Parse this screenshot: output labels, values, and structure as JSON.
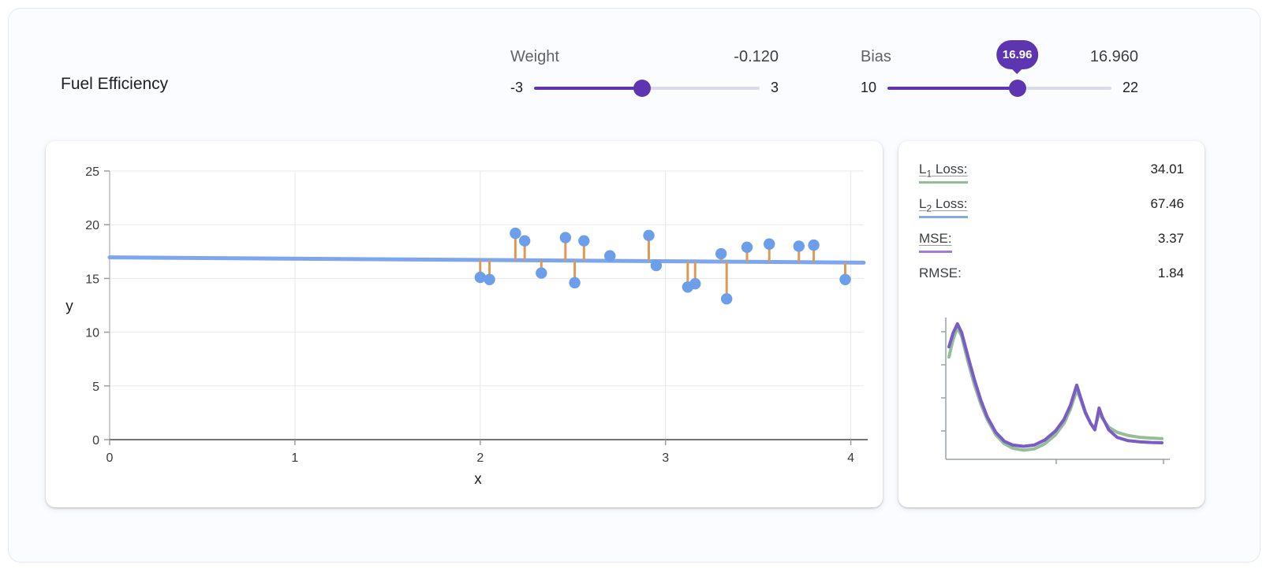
{
  "page": {
    "title": "Fuel Efficiency"
  },
  "colors": {
    "accent_purple": "#5e35b1",
    "track_inactive": "#ded9e8",
    "point_blue": "#6c9eea",
    "model_line_blue": "#7ea6ef",
    "residual_orange": "#de9a55",
    "l1_green": "#94bd98",
    "l2_blue": "#85abe8",
    "mse_purple": "#9c7fd4",
    "mini_purple": "#7a5cc6",
    "grid": "#e8e8e8",
    "axis_dark": "#616161",
    "axis_light": "#bdbdbd"
  },
  "controls": {
    "weight": {
      "label": "Weight",
      "value_display": "-0.120",
      "min": -3,
      "max": 3,
      "value": -0.12,
      "min_label": "-3",
      "max_label": "3"
    },
    "bias": {
      "label": "Bias",
      "value_display": "16.960",
      "min": 10,
      "max": 22,
      "value": 16.96,
      "min_label": "10",
      "max_label": "22",
      "tooltip": "16.96"
    }
  },
  "metrics": [
    {
      "name": "l1-loss",
      "label_main": "L",
      "label_sub": "1",
      "label_rest": " Loss:",
      "value": "34.01",
      "underline": "#94bd98"
    },
    {
      "name": "l2-loss",
      "label_main": "L",
      "label_sub": "2",
      "label_rest": " Loss:",
      "value": "67.46",
      "underline": "#85abe8"
    },
    {
      "name": "mse",
      "label_main": "MSE:",
      "label_sub": "",
      "label_rest": "",
      "value": "3.37",
      "underline": "#9c7fd4"
    },
    {
      "name": "rmse",
      "label_main": "RMSE:",
      "label_sub": "",
      "label_rest": "",
      "value": "1.84",
      "underline": ""
    }
  ],
  "chart_data": [
    {
      "type": "scatter",
      "title": "",
      "xlabel": "x",
      "ylabel": "y",
      "xlim": [
        0,
        4.07
      ],
      "ylim": [
        0,
        25
      ],
      "xticks": [
        0,
        1,
        2,
        3,
        4
      ],
      "yticks": [
        0,
        5,
        10,
        15,
        20,
        25
      ],
      "grid": true,
      "points": [
        [
          2.0,
          15.1
        ],
        [
          2.05,
          14.9
        ],
        [
          2.19,
          19.2
        ],
        [
          2.24,
          18.5
        ],
        [
          2.33,
          15.5
        ],
        [
          2.46,
          18.8
        ],
        [
          2.51,
          14.6
        ],
        [
          2.56,
          18.5
        ],
        [
          2.7,
          17.1
        ],
        [
          2.91,
          19.0
        ],
        [
          2.95,
          16.2
        ],
        [
          3.12,
          14.2
        ],
        [
          3.16,
          14.5
        ],
        [
          3.3,
          17.3
        ],
        [
          3.33,
          13.1
        ],
        [
          3.44,
          17.9
        ],
        [
          3.56,
          18.2
        ],
        [
          3.72,
          18.0
        ],
        [
          3.8,
          18.1
        ],
        [
          3.97,
          14.9
        ]
      ],
      "model_line": {
        "weight": -0.12,
        "bias": 16.96
      },
      "residuals": true,
      "colors": {
        "point": "#6c9eea",
        "line": "#7ea6ef",
        "residual": "#de9a55"
      }
    },
    {
      "type": "line",
      "title": "loss-history",
      "xlabel": "",
      "ylabel": "",
      "legend_position": "none",
      "series": [
        {
          "name": "L1 Loss",
          "color": "#94bd98",
          "values": [
            [
              0,
              0.74
            ],
            [
              0.02,
              0.88
            ],
            [
              0.04,
              0.97
            ],
            [
              0.06,
              0.9
            ],
            [
              0.09,
              0.7
            ],
            [
              0.12,
              0.52
            ],
            [
              0.15,
              0.37
            ],
            [
              0.18,
              0.25
            ],
            [
              0.22,
              0.13
            ],
            [
              0.26,
              0.06
            ],
            [
              0.3,
              0.025
            ],
            [
              0.35,
              0.01
            ],
            [
              0.4,
              0.02
            ],
            [
              0.45,
              0.06
            ],
            [
              0.5,
              0.13
            ],
            [
              0.54,
              0.22
            ],
            [
              0.57,
              0.33
            ],
            [
              0.6,
              0.48
            ],
            [
              0.615,
              0.42
            ],
            [
              0.64,
              0.3
            ],
            [
              0.665,
              0.22
            ],
            [
              0.685,
              0.18
            ],
            [
              0.705,
              0.3
            ],
            [
              0.72,
              0.26
            ],
            [
              0.75,
              0.19
            ],
            [
              0.79,
              0.15
            ],
            [
              0.84,
              0.125
            ],
            [
              0.9,
              0.11
            ],
            [
              0.95,
              0.105
            ],
            [
              1,
              0.1
            ]
          ]
        },
        {
          "name": "MSE",
          "color": "#7a5cc6",
          "values": [
            [
              0,
              0.82
            ],
            [
              0.02,
              0.93
            ],
            [
              0.04,
              1.0
            ],
            [
              0.06,
              0.93
            ],
            [
              0.09,
              0.74
            ],
            [
              0.12,
              0.56
            ],
            [
              0.15,
              0.4
            ],
            [
              0.18,
              0.27
            ],
            [
              0.22,
              0.15
            ],
            [
              0.26,
              0.08
            ],
            [
              0.3,
              0.05
            ],
            [
              0.35,
              0.04
            ],
            [
              0.4,
              0.05
            ],
            [
              0.45,
              0.09
            ],
            [
              0.5,
              0.16
            ],
            [
              0.54,
              0.25
            ],
            [
              0.57,
              0.36
            ],
            [
              0.6,
              0.52
            ],
            [
              0.615,
              0.44
            ],
            [
              0.64,
              0.31
            ],
            [
              0.665,
              0.22
            ],
            [
              0.685,
              0.17
            ],
            [
              0.705,
              0.34
            ],
            [
              0.72,
              0.27
            ],
            [
              0.75,
              0.17
            ],
            [
              0.79,
              0.11
            ],
            [
              0.84,
              0.085
            ],
            [
              0.9,
              0.075
            ],
            [
              0.95,
              0.07
            ],
            [
              1,
              0.068
            ]
          ]
        }
      ]
    }
  ]
}
